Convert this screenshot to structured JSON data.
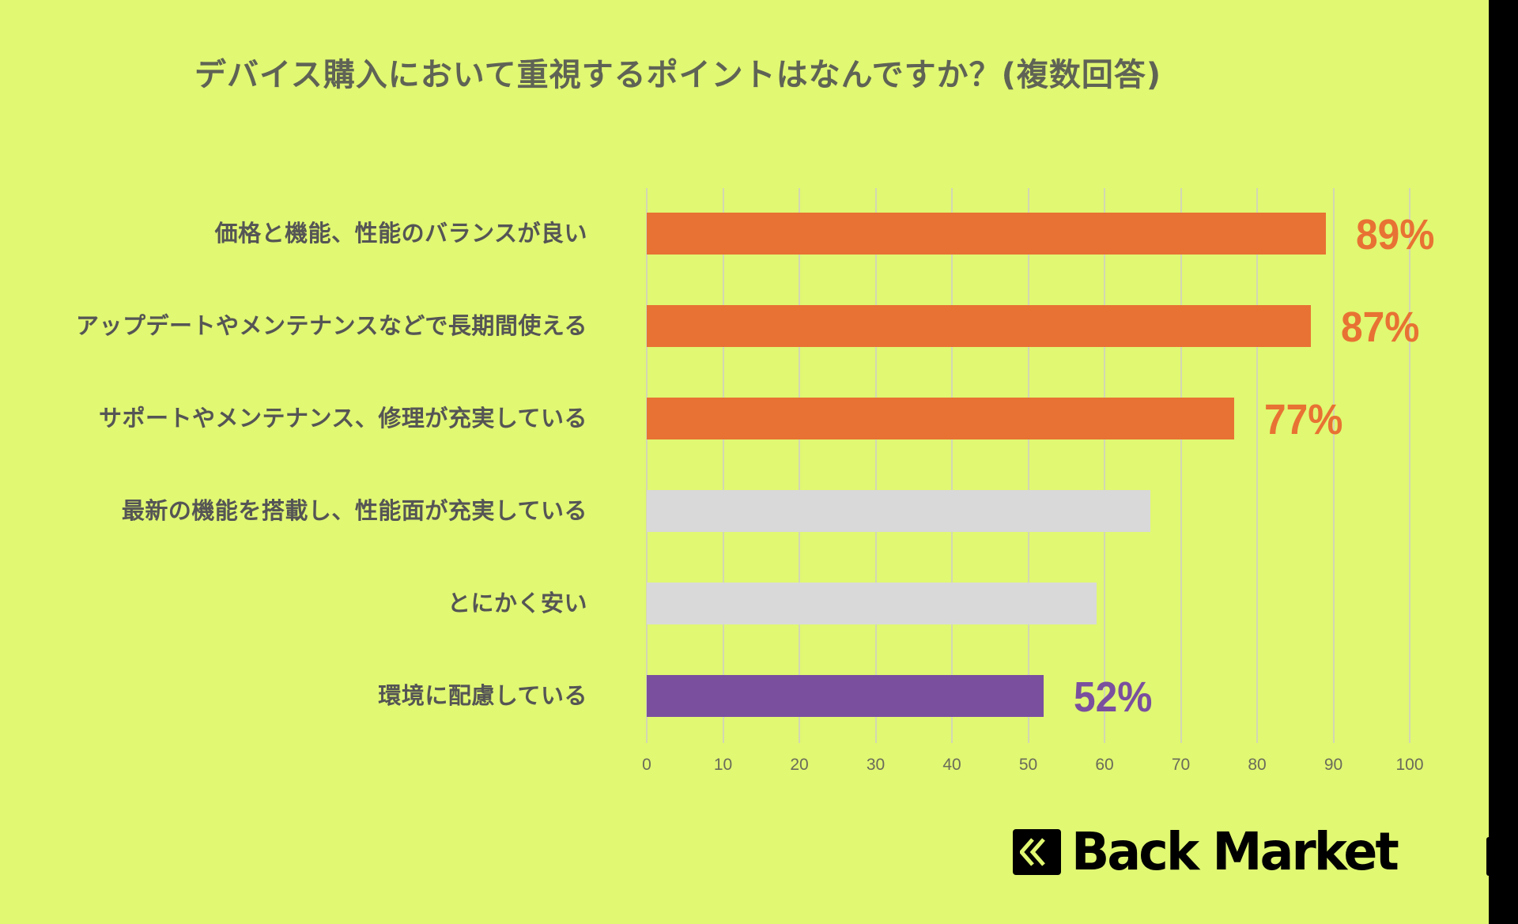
{
  "title": "デバイス購入において重視するポイントはなんですか？(複数回答)",
  "brand": {
    "name": "Back Market",
    "logo_icon": "double-chevron-left-icon"
  },
  "colors": {
    "background": "#e0f872",
    "highlight_orange": "#e87233",
    "neutral_gray": "#d9d9d9",
    "highlight_purple": "#7a4f9e",
    "title_text": "#5f6355",
    "label_text": "#555555"
  },
  "chart_data": {
    "type": "bar",
    "orientation": "horizontal",
    "title": "デバイス購入において重視するポイントはなんですか？(複数回答)",
    "xlabel": "",
    "ylabel": "",
    "xlim": [
      0,
      100
    ],
    "x_ticks": [
      "0",
      "10",
      "20",
      "30",
      "40",
      "50",
      "60",
      "70",
      "80",
      "90",
      "100"
    ],
    "grid": "vertical",
    "legend": "none",
    "categories": [
      "価格と機能、性能のバランスが良い",
      "アップデートやメンテナンスなどで長期間使える",
      "サポートやメンテナンス、修理が充実している",
      "最新の機能を搭載し、性能面が充実している",
      "とにかく安い",
      "環境に配慮している"
    ],
    "values": [
      89,
      87,
      77,
      66,
      59,
      52
    ],
    "value_labels": [
      "89%",
      "87%",
      "77%",
      "",
      "",
      "52%"
    ],
    "bar_colors": [
      "#e87233",
      "#e87233",
      "#e87233",
      "#d9d9d9",
      "#d9d9d9",
      "#7a4f9e"
    ]
  }
}
